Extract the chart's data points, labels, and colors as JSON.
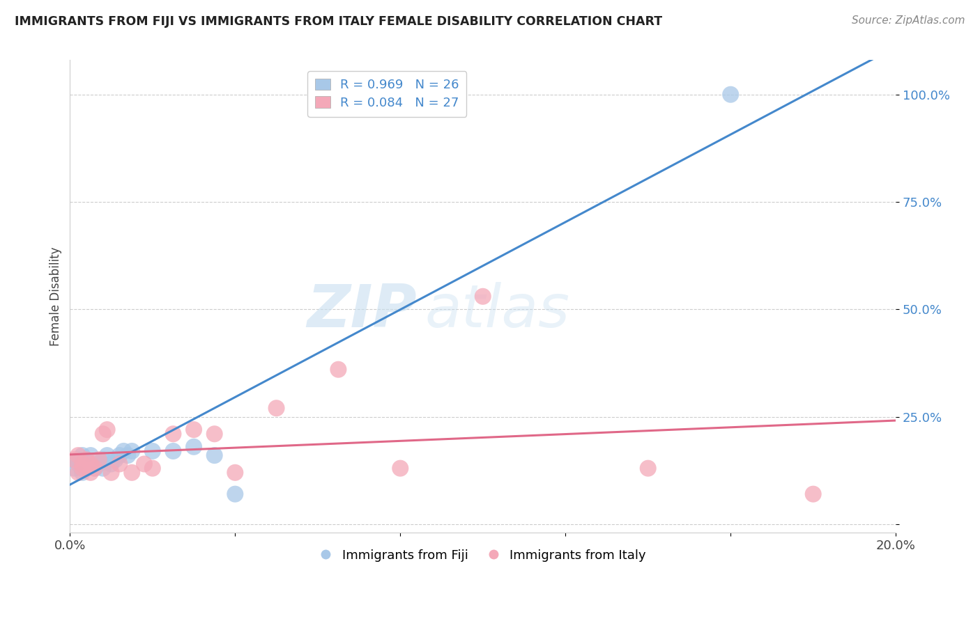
{
  "title": "IMMIGRANTS FROM FIJI VS IMMIGRANTS FROM ITALY FEMALE DISABILITY CORRELATION CHART",
  "source": "Source: ZipAtlas.com",
  "ylabel": "Female Disability",
  "xlabel": "",
  "xlim": [
    0.0,
    0.2
  ],
  "ylim": [
    -0.02,
    1.08
  ],
  "yticks": [
    0.0,
    0.25,
    0.5,
    0.75,
    1.0
  ],
  "ytick_labels": [
    "",
    "25.0%",
    "50.0%",
    "75.0%",
    "100.0%"
  ],
  "xticks": [
    0.0,
    0.04,
    0.08,
    0.12,
    0.16,
    0.2
  ],
  "xtick_labels": [
    "0.0%",
    "",
    "",
    "",
    "",
    "20.0%"
  ],
  "fiji_color": "#a8c8e8",
  "italy_color": "#f4a8b8",
  "fiji_line_color": "#4488cc",
  "italy_line_color": "#e06888",
  "fiji_R": 0.969,
  "fiji_N": 26,
  "italy_R": 0.084,
  "italy_N": 27,
  "fiji_x": [
    0.001,
    0.002,
    0.002,
    0.003,
    0.003,
    0.004,
    0.004,
    0.005,
    0.005,
    0.006,
    0.007,
    0.008,
    0.008,
    0.009,
    0.01,
    0.011,
    0.012,
    0.013,
    0.014,
    0.015,
    0.02,
    0.025,
    0.03,
    0.035,
    0.04,
    0.16
  ],
  "fiji_y": [
    0.13,
    0.14,
    0.15,
    0.12,
    0.16,
    0.13,
    0.15,
    0.14,
    0.16,
    0.13,
    0.14,
    0.15,
    0.13,
    0.16,
    0.14,
    0.15,
    0.16,
    0.17,
    0.16,
    0.17,
    0.17,
    0.17,
    0.18,
    0.16,
    0.07,
    1.0
  ],
  "italy_x": [
    0.001,
    0.002,
    0.002,
    0.003,
    0.003,
    0.004,
    0.005,
    0.005,
    0.006,
    0.007,
    0.008,
    0.009,
    0.01,
    0.012,
    0.015,
    0.018,
    0.02,
    0.025,
    0.03,
    0.035,
    0.04,
    0.05,
    0.065,
    0.08,
    0.1,
    0.14,
    0.18
  ],
  "italy_y": [
    0.15,
    0.12,
    0.16,
    0.13,
    0.14,
    0.15,
    0.12,
    0.14,
    0.13,
    0.15,
    0.21,
    0.22,
    0.12,
    0.14,
    0.12,
    0.14,
    0.13,
    0.21,
    0.22,
    0.21,
    0.12,
    0.27,
    0.36,
    0.13,
    0.53,
    0.13,
    0.07
  ],
  "watermark_zip": "ZIP",
  "watermark_atlas": "atlas",
  "background_color": "#ffffff",
  "grid_color": "#cccccc"
}
